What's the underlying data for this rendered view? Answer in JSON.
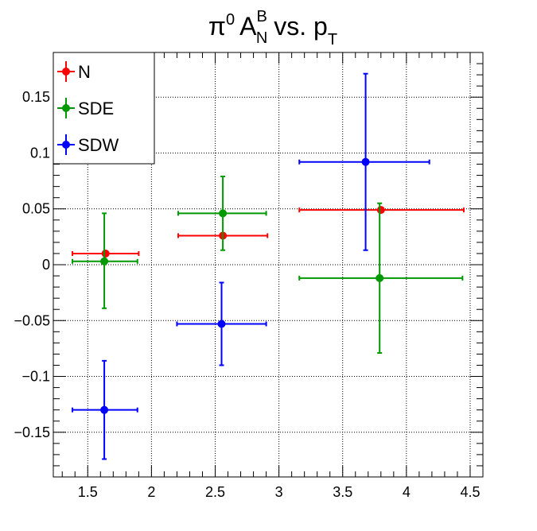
{
  "chart_data": {
    "type": "scatter",
    "title": {
      "pi": "π",
      "pi_sup": "0",
      "a": "A",
      "a_sup": "B",
      "a_sub": "N",
      "mid": "vs. p",
      "p_sub": "T"
    },
    "xlabel": "",
    "ylabel": "",
    "xlim": [
      1.23,
      4.6
    ],
    "ylim": [
      -0.19,
      0.19
    ],
    "xticks": [
      1.5,
      2,
      2.5,
      3,
      3.5,
      4,
      4.5
    ],
    "xtick_labels": [
      "1.5",
      "2",
      "2.5",
      "3",
      "3.5",
      "4",
      "4.5"
    ],
    "yticks": [
      -0.15,
      -0.1,
      -0.05,
      0,
      0.05,
      0.1,
      0.15
    ],
    "ytick_labels": [
      "−0.15",
      "−0.1",
      "−0.05",
      "0",
      "0.05",
      "0.1",
      "0.15"
    ],
    "grid": true,
    "legend_position": "top-left",
    "series": [
      {
        "name": "N",
        "color": "#ff0000",
        "points": [
          {
            "x": 1.64,
            "y": 0.01,
            "xlo": 1.38,
            "xhi": 1.9,
            "ylo": 0.01,
            "yhi": 0.01
          },
          {
            "x": 2.56,
            "y": 0.026,
            "xlo": 2.21,
            "xhi": 2.91,
            "ylo": 0.026,
            "yhi": 0.026
          },
          {
            "x": 3.8,
            "y": 0.049,
            "xlo": 3.16,
            "xhi": 4.45,
            "ylo": 0.049,
            "yhi": 0.049
          }
        ]
      },
      {
        "name": "SDE",
        "color": "#009900",
        "points": [
          {
            "x": 1.63,
            "y": 0.003,
            "xlo": 1.38,
            "xhi": 1.89,
            "ylo": -0.039,
            "yhi": 0.046
          },
          {
            "x": 2.56,
            "y": 0.046,
            "xlo": 2.21,
            "xhi": 2.9,
            "ylo": 0.013,
            "yhi": 0.079
          },
          {
            "x": 3.79,
            "y": -0.012,
            "xlo": 3.16,
            "xhi": 4.44,
            "ylo": -0.079,
            "yhi": 0.055
          }
        ]
      },
      {
        "name": "SDW",
        "color": "#0000ff",
        "points": [
          {
            "x": 1.63,
            "y": -0.13,
            "xlo": 1.38,
            "xhi": 1.89,
            "ylo": -0.174,
            "yhi": -0.086
          },
          {
            "x": 2.55,
            "y": -0.053,
            "xlo": 2.2,
            "xhi": 2.9,
            "ylo": -0.09,
            "yhi": -0.016
          },
          {
            "x": 3.68,
            "y": 0.092,
            "xlo": 3.16,
            "xhi": 4.18,
            "ylo": 0.013,
            "yhi": 0.171
          }
        ]
      }
    ]
  }
}
